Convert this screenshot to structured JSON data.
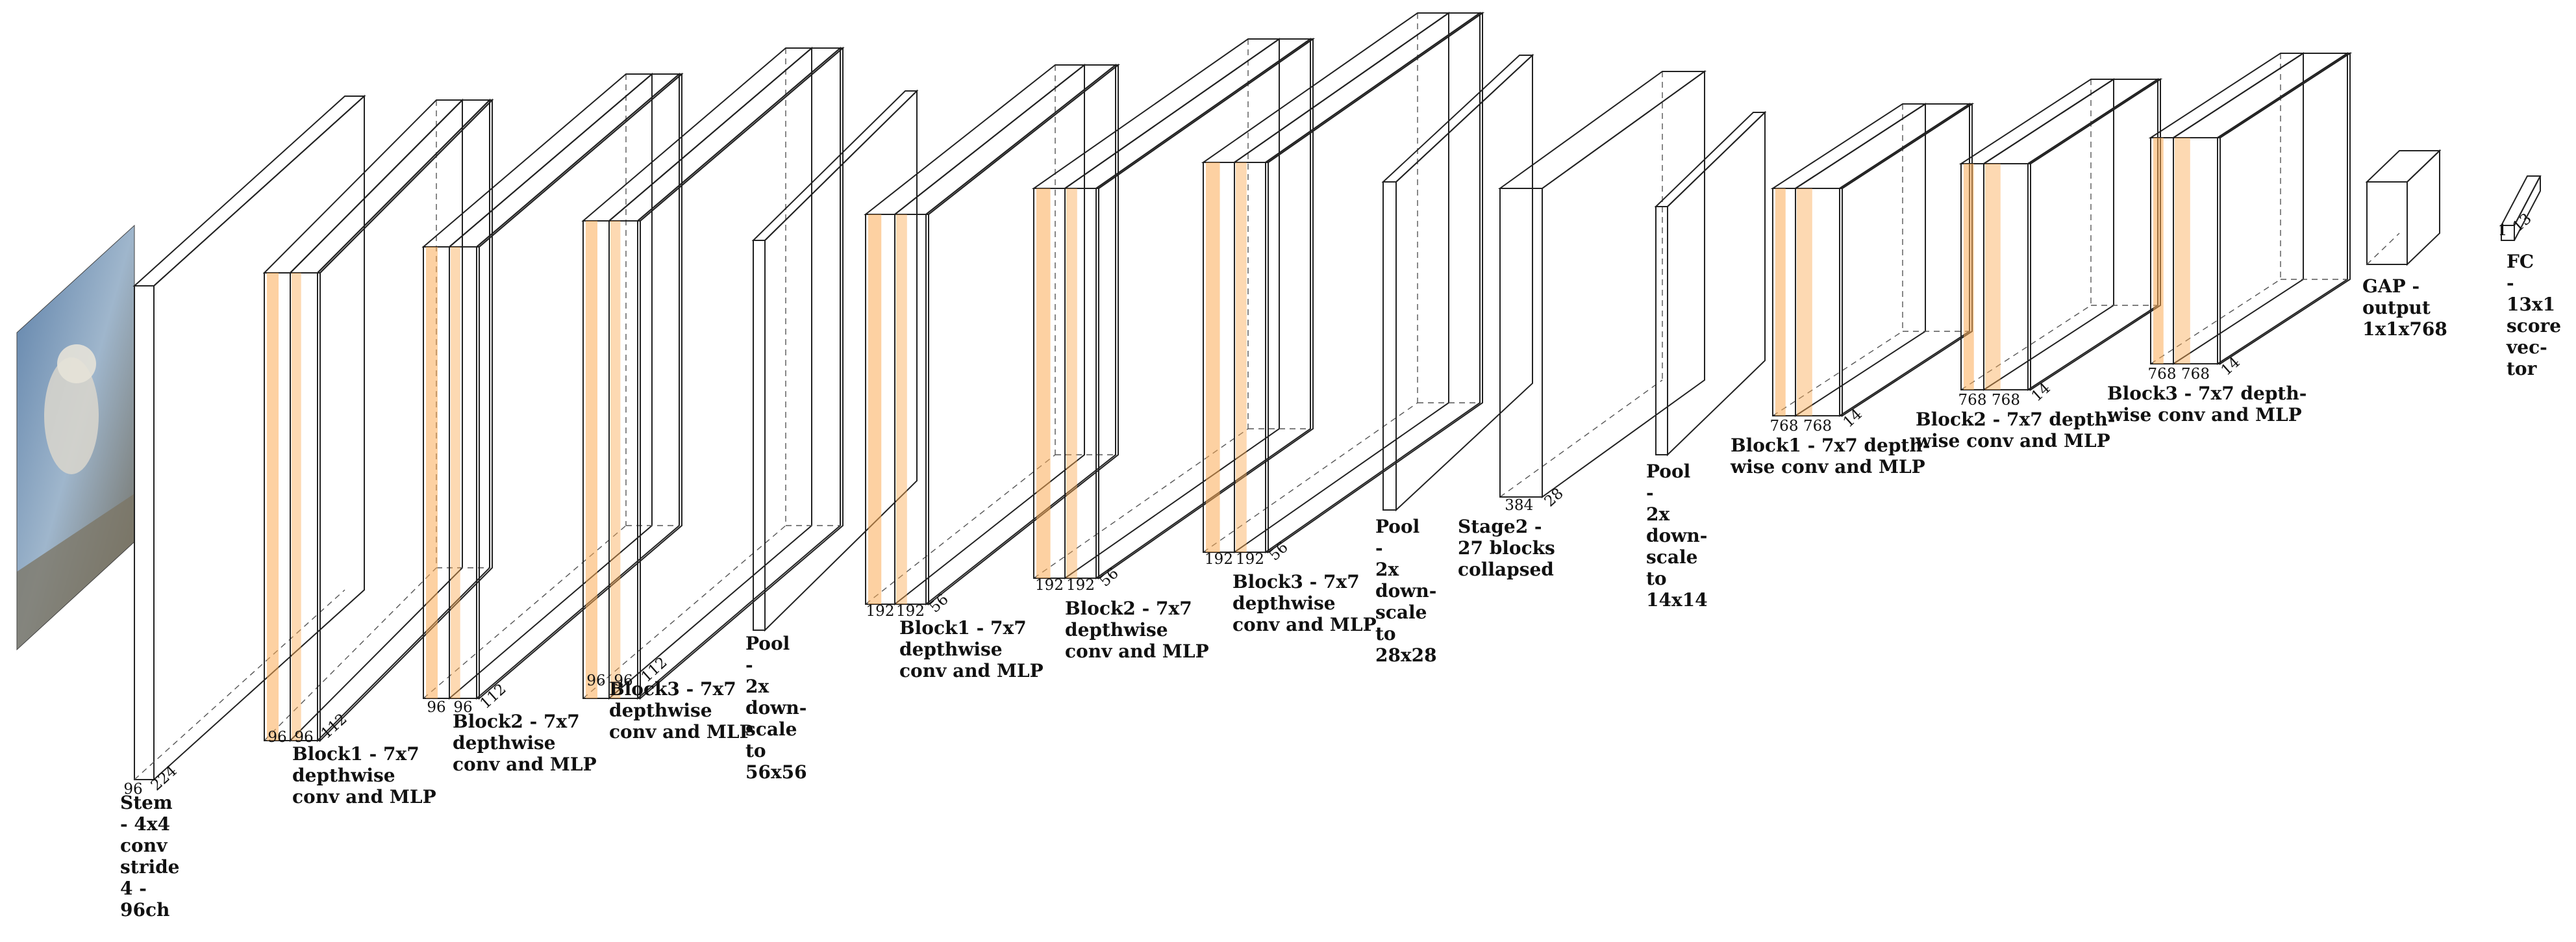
{
  "colors": {
    "stem": "#fde7bb",
    "conv": "#fec68a",
    "conv_band": "#fbab55",
    "conv_side": "#f8b76f",
    "pool_face": "#e05838",
    "pool_side": "#dd7a7e",
    "stage_face": "#fde8bd",
    "stage_side": "#fee8c2",
    "edge": "#222222",
    "image_sky": "#6c8fb5",
    "image_ground": "#7b7463"
  },
  "input": {
    "icon": "dog-photo-icon"
  },
  "layers": [
    {
      "id": "stem",
      "kind": "stem",
      "dims": [
        "96",
        "224"
      ],
      "label": [
        "Stem",
        "- 4x4",
        "conv",
        "stride",
        "4 -",
        "96ch"
      ]
    },
    {
      "id": "s1b1",
      "kind": "block",
      "dims": [
        "96",
        "96",
        "112"
      ],
      "label": [
        "Block1 - 7x7",
        "depthwise",
        "conv and MLP"
      ]
    },
    {
      "id": "s1b2",
      "kind": "block",
      "dims": [
        "96",
        "96",
        "112"
      ],
      "label": [
        "Block2 - 7x7",
        "depthwise",
        "conv and MLP"
      ]
    },
    {
      "id": "s1b3",
      "kind": "block",
      "dims": [
        "96",
        "96",
        "112"
      ],
      "label": [
        "Block3 - 7x7",
        "depthwise",
        "conv and MLP"
      ]
    },
    {
      "id": "pool1",
      "kind": "pool",
      "dims": [],
      "label": [
        "Pool",
        "-",
        "2x",
        "down-",
        "scale",
        "to",
        "56x56"
      ]
    },
    {
      "id": "s2b1",
      "kind": "block",
      "dims": [
        "192",
        "192",
        "56"
      ],
      "label": [
        "Block1 - 7x7",
        "depthwise",
        "conv and MLP"
      ]
    },
    {
      "id": "s2b2",
      "kind": "block",
      "dims": [
        "192",
        "192",
        "56"
      ],
      "label": [
        "Block2 - 7x7",
        "depthwise",
        "conv and MLP"
      ]
    },
    {
      "id": "s2b3",
      "kind": "block",
      "dims": [
        "192",
        "192",
        "56"
      ],
      "label": [
        "Block3 - 7x7",
        "depthwise",
        "conv and MLP"
      ]
    },
    {
      "id": "pool2",
      "kind": "pool",
      "dims": [],
      "label": [
        "Pool",
        "-",
        "2x",
        "down-",
        "scale",
        "to",
        "28x28"
      ]
    },
    {
      "id": "stage3",
      "kind": "stage",
      "dims": [
        "384",
        "28"
      ],
      "label": [
        "Stage2 -",
        "27 blocks",
        "collapsed"
      ]
    },
    {
      "id": "pool3",
      "kind": "pool",
      "dims": [],
      "label": [
        "Pool",
        "-",
        "2x",
        "down-",
        "scale",
        "to",
        "14x14"
      ]
    },
    {
      "id": "s4b1",
      "kind": "block",
      "dims": [
        "768",
        "768",
        "14"
      ],
      "label": [
        "Block1 - 7x7 depth-",
        "wise conv and MLP"
      ]
    },
    {
      "id": "s4b2",
      "kind": "block",
      "dims": [
        "768",
        "768",
        "14"
      ],
      "label": [
        "Block2 - 7x7 depth-",
        "wise conv and MLP"
      ]
    },
    {
      "id": "s4b3",
      "kind": "block",
      "dims": [
        "768",
        "768",
        "14"
      ],
      "label": [
        "Block3 - 7x7 depth-",
        "wise conv and MLP"
      ]
    },
    {
      "id": "gap",
      "kind": "gap",
      "dims": [],
      "label": [
        "GAP -",
        "output",
        "1x1x768"
      ]
    },
    {
      "id": "fc",
      "kind": "fc",
      "dims": [
        "1",
        "13"
      ],
      "label": [
        "FC",
        "-",
        "13x1",
        "score",
        "vec-",
        "tor"
      ]
    }
  ]
}
